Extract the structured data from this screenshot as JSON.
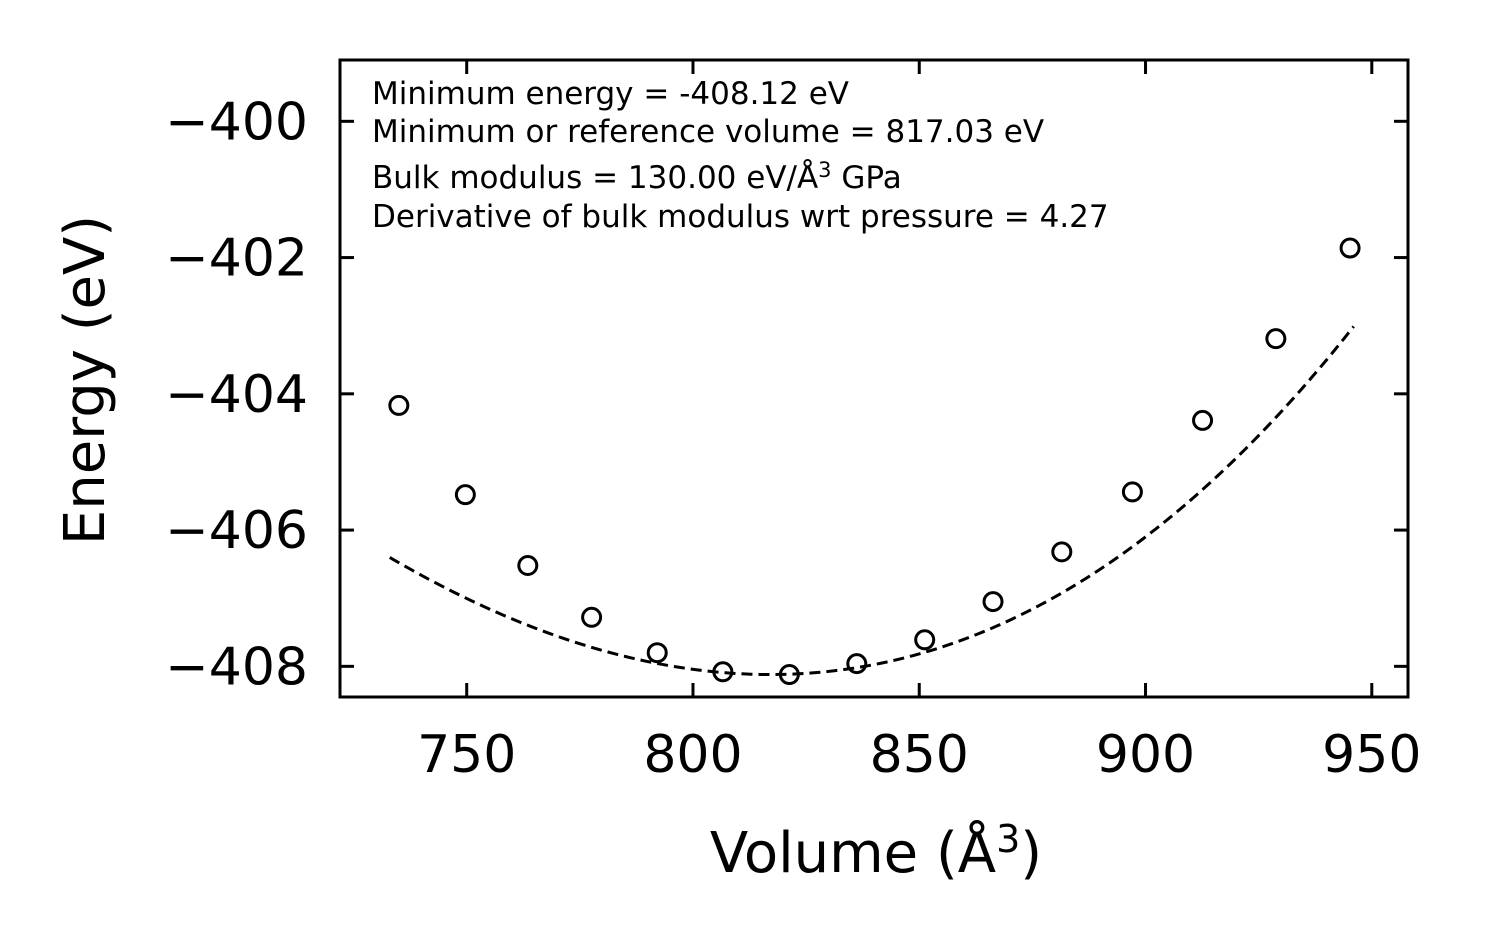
{
  "chart_data": {
    "type": "scatter",
    "xlabel": "Volume (Å",
    "xlabel_superscript": "3",
    "xlabel_suffix": ")",
    "ylabel": "Energy (eV)",
    "xlim": [
      722,
      958
    ],
    "ylim": [
      -408.45,
      -399.1
    ],
    "x_ticks": [
      750,
      800,
      850,
      900,
      950
    ],
    "x_tick_labels": [
      "750",
      "800",
      "850",
      "900",
      "950"
    ],
    "y_ticks": [
      -400,
      -402,
      -404,
      -406,
      -408
    ],
    "y_tick_labels": [
      "−400",
      "−402",
      "−404",
      "−406",
      "−408"
    ],
    "series": [
      {
        "name": "data",
        "marker": "open-circle",
        "x": [
          735.0,
          749.7,
          763.5,
          777.6,
          792.1,
          806.6,
          821.3,
          836.2,
          851.2,
          866.3,
          881.5,
          897.1,
          912.6,
          928.8,
          945.2
        ],
        "y": [
          -404.17,
          -405.48,
          -406.52,
          -407.28,
          -407.8,
          -408.08,
          -408.12,
          -407.96,
          -407.61,
          -407.05,
          -406.32,
          -405.44,
          -404.39,
          -403.19,
          -401.86
        ]
      },
      {
        "name": "fit",
        "line_style": "dashed",
        "x_range": [
          733.0,
          946.0
        ],
        "e0": -408.12,
        "v0": 817.03,
        "curvature": 0.0002685,
        "cubic": 3e-07
      }
    ],
    "annotations": [
      "Minimum energy = -408.12 eV",
      "Minimum or reference volume = 817.03 eV",
      "Bulk modulus = 130.00 eV/Å",
      "Derivative of bulk modulus wrt pressure = 4.27"
    ],
    "annotation_superscript": "3",
    "annotation_suffix": " GPa",
    "colors": {
      "axes": "#000000",
      "marker": "#000000",
      "fit_line": "#000000",
      "background": "#ffffff"
    }
  }
}
